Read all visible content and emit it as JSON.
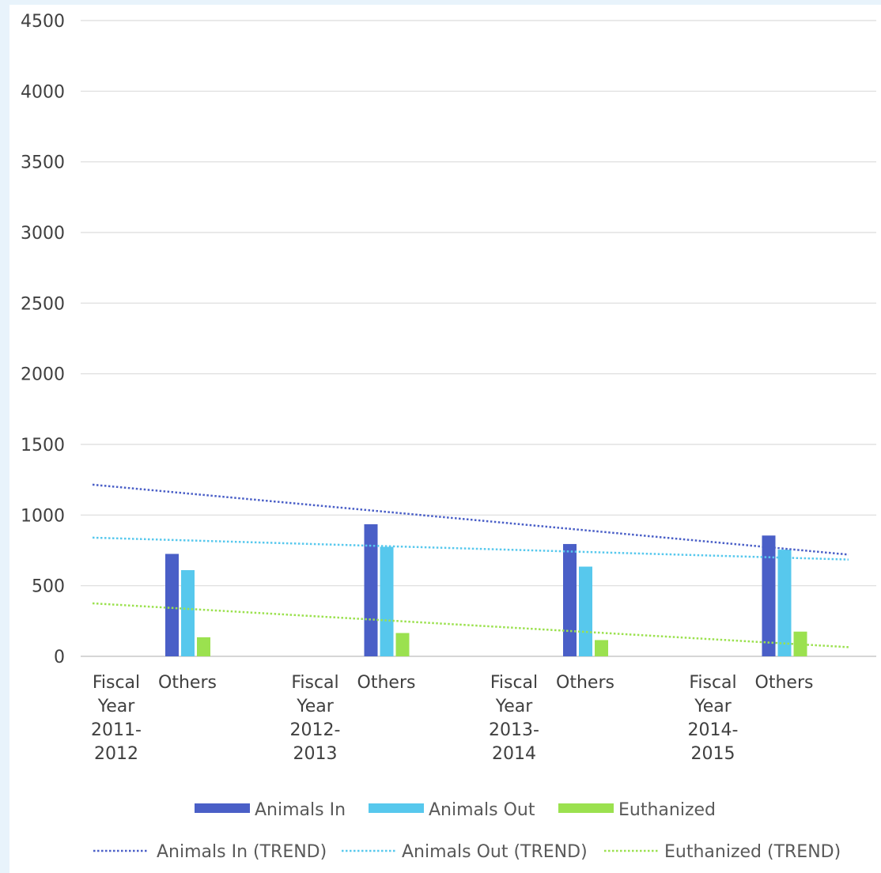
{
  "chart_data": {
    "type": "bar",
    "title": "",
    "xlabel": "",
    "ylabel": "",
    "ylim": [
      0,
      4500
    ],
    "yticks": [
      0,
      500,
      1000,
      1500,
      2000,
      2500,
      3000,
      3500,
      4000,
      4500
    ],
    "grid": true,
    "legend_position": "bottom",
    "groups": [
      {
        "name": "Fiscal Year 2011-2012",
        "label_lines": [
          "Fiscal",
          "Year",
          "2011-",
          "2012"
        ]
      },
      {
        "name": "Fiscal Year 2012-2013",
        "label_lines": [
          "Fiscal",
          "Year",
          "2012-",
          "2013"
        ]
      },
      {
        "name": "Fiscal Year 2013-2014",
        "label_lines": [
          "Fiscal",
          "Year",
          "2013-",
          "2014"
        ]
      },
      {
        "name": "Fiscal Year 2014-2015",
        "label_lines": [
          "Fiscal",
          "Year",
          "2014-",
          "2015"
        ]
      }
    ],
    "subcategory": "Others",
    "series": [
      {
        "name": "Animals In",
        "color": "#4a5fc7",
        "values": [
          725,
          935,
          795,
          855
        ]
      },
      {
        "name": "Animals Out",
        "color": "#57c8ed",
        "values": [
          610,
          775,
          635,
          755
        ]
      },
      {
        "name": "Euthanized",
        "color": "#9be14f",
        "values": [
          135,
          165,
          115,
          175
        ]
      }
    ],
    "trends": [
      {
        "name": "Animals In (TREND)",
        "color": "#4a5fc7",
        "start": 1215,
        "end": 720
      },
      {
        "name": "Animals Out (TREND)",
        "color": "#57c8ed",
        "start": 840,
        "end": 685
      },
      {
        "name": "Euthanized (TREND)",
        "color": "#9be14f",
        "start": 375,
        "end": 65
      }
    ]
  }
}
